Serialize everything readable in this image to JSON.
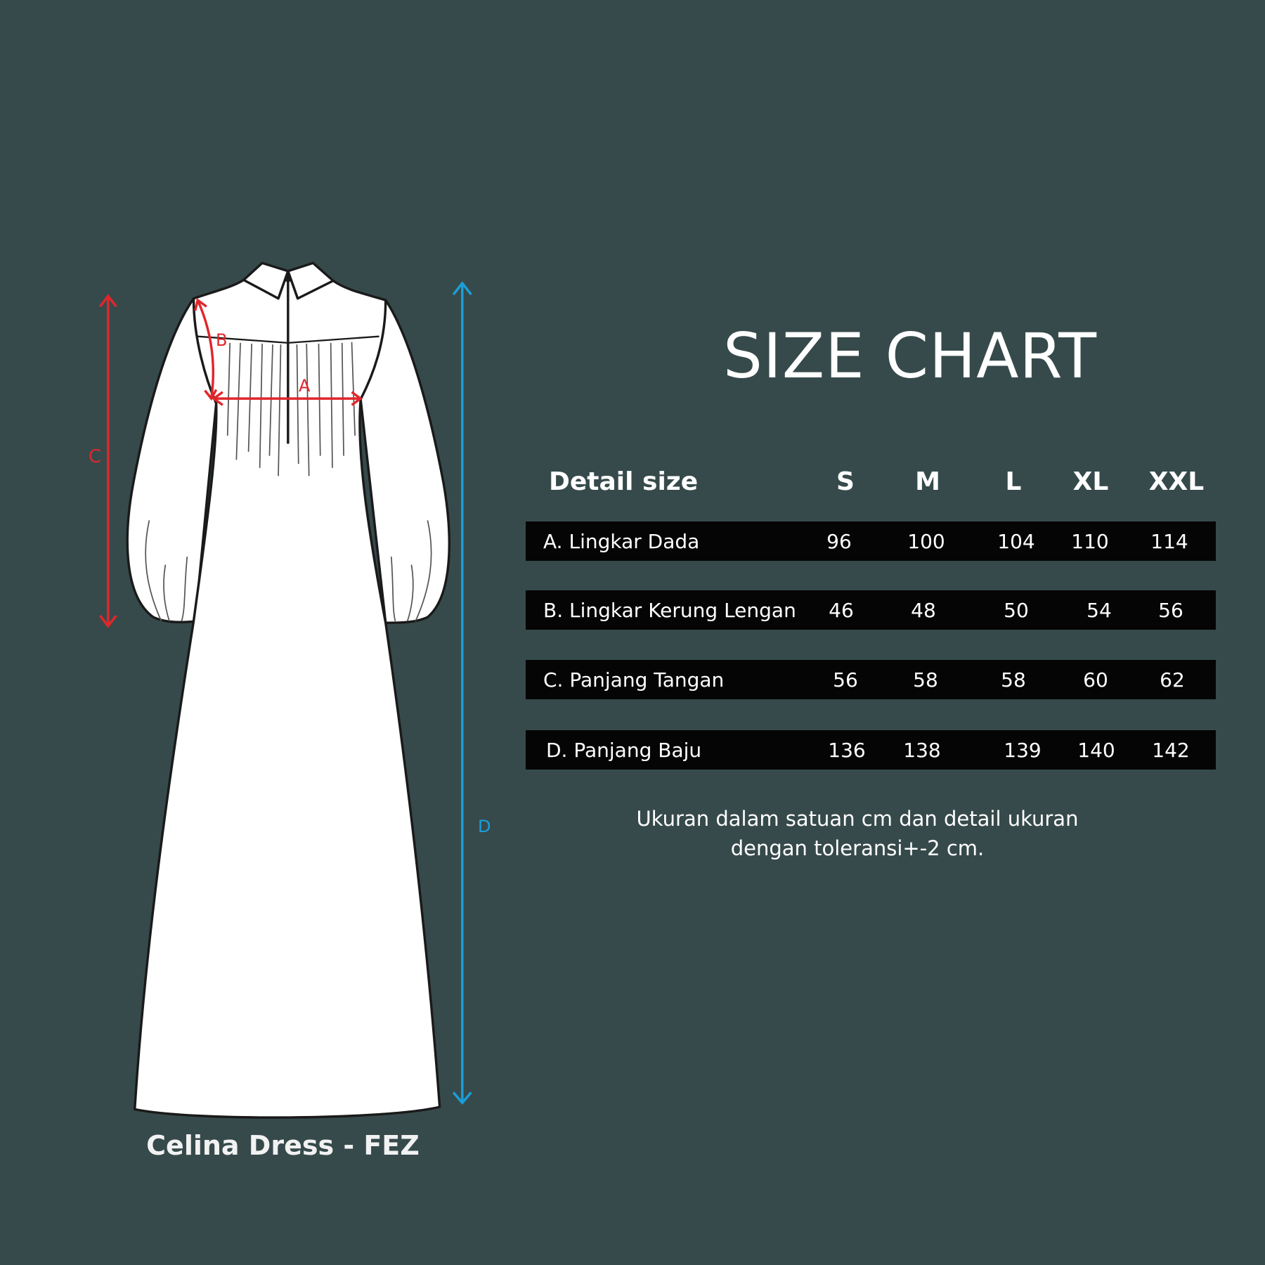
{
  "title": "SIZE CHART",
  "product_name": "Celina Dress - FEZ",
  "diagram_labels": {
    "a": "A",
    "b": "B",
    "c": "C",
    "d": "D"
  },
  "table": {
    "header": "Detail size",
    "sizes": [
      "S",
      "M",
      "L",
      "XL",
      "XXL"
    ],
    "rows": [
      {
        "label": "A. Lingkar Dada",
        "values": [
          "96",
          "100",
          "104",
          "110",
          "114"
        ]
      },
      {
        "label": "B. Lingkar Kerung Lengan",
        "values": [
          "46",
          "48",
          "50",
          "54",
          "56"
        ]
      },
      {
        "label": "C. Panjang Tangan",
        "values": [
          "56",
          "58",
          "58",
          "60",
          "62"
        ]
      },
      {
        "label": "D. Panjang Baju",
        "values": [
          "136",
          "138",
          "139",
          "140",
          "142"
        ]
      }
    ]
  },
  "note": {
    "line1": "Ukuran dalam satuan cm dan detail ukuran",
    "line2": "dengan toleransi+-2 cm."
  },
  "colors": {
    "background": "#374a4b",
    "row_bg": "#050505",
    "measure_red": "#e0262b",
    "measure_blue": "#1a9fdb"
  }
}
